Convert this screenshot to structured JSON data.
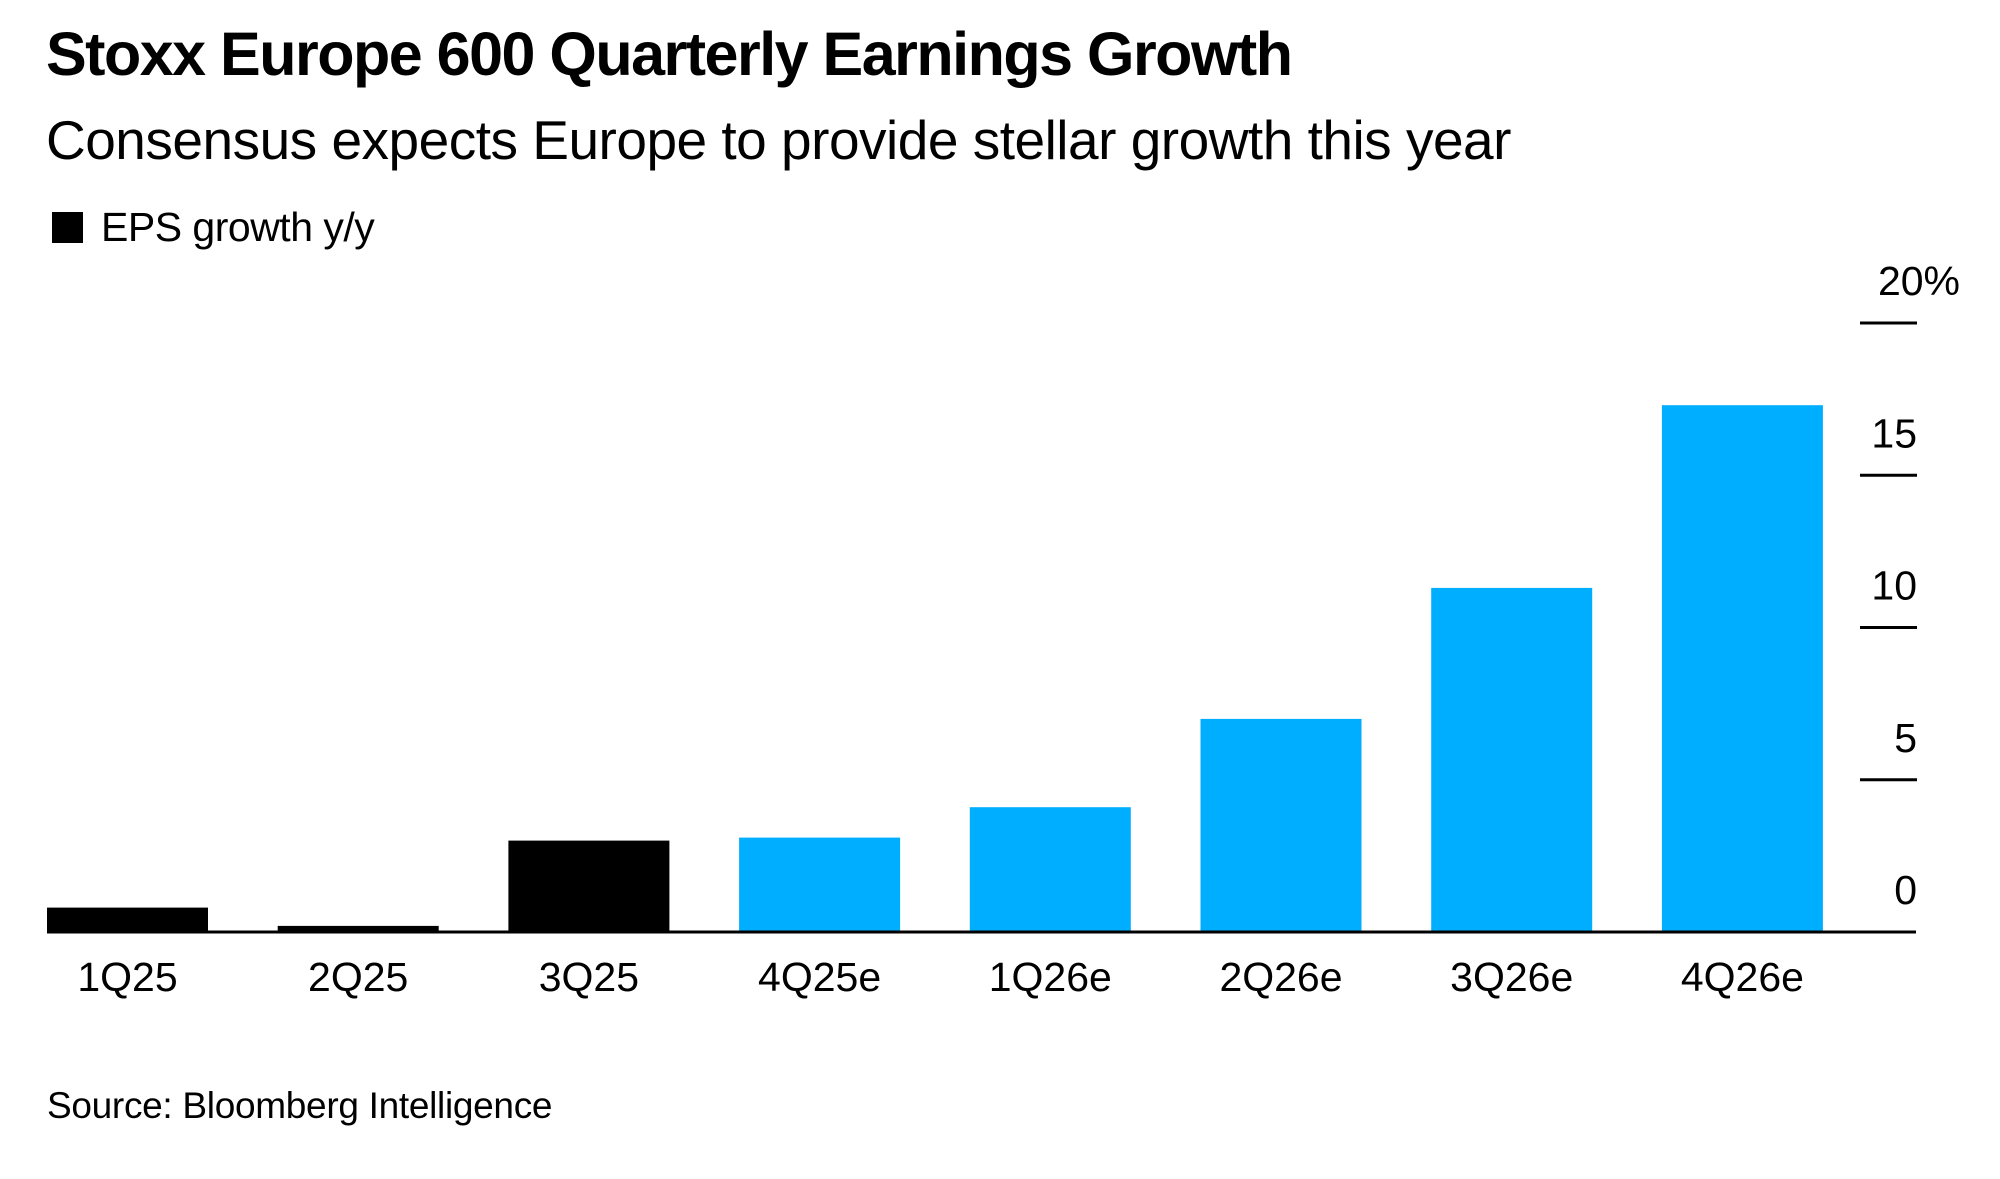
{
  "header": {
    "title": "Stoxx Europe 600 Quarterly Earnings Growth",
    "subtitle": "Consensus expects Europe to provide stellar growth this year"
  },
  "legend": {
    "items": [
      {
        "label": "EPS growth y/y",
        "color": "#000000"
      }
    ]
  },
  "footer": {
    "source": "Source: Bloomberg Intelligence"
  },
  "chart_data": {
    "type": "bar",
    "title": "Stoxx Europe 600 Quarterly Earnings Growth",
    "subtitle": "Consensus expects Europe to provide stellar growth this year",
    "xlabel": "",
    "ylabel": "",
    "categories": [
      "1Q25",
      "2Q25",
      "3Q25",
      "4Q25e",
      "1Q26e",
      "2Q26e",
      "3Q26e",
      "4Q26e"
    ],
    "series": [
      {
        "name": "EPS growth y/y",
        "values": [
          0.8,
          0.2,
          3.0,
          3.1,
          4.1,
          7.0,
          11.3,
          17.3
        ],
        "estimate": [
          false,
          false,
          false,
          true,
          true,
          true,
          true,
          true
        ]
      }
    ],
    "colors": {
      "actual": "#000000",
      "estimate": "#00AEFF"
    },
    "ylim": [
      0,
      20
    ],
    "yticks": [
      0,
      5,
      10,
      15,
      20
    ],
    "ytick_labels": [
      "0",
      "5",
      "10",
      "15",
      "20%"
    ],
    "y_axis_side": "right",
    "grid": false,
    "legend_position": "top-left",
    "source": "Source: Bloomberg Intelligence"
  }
}
